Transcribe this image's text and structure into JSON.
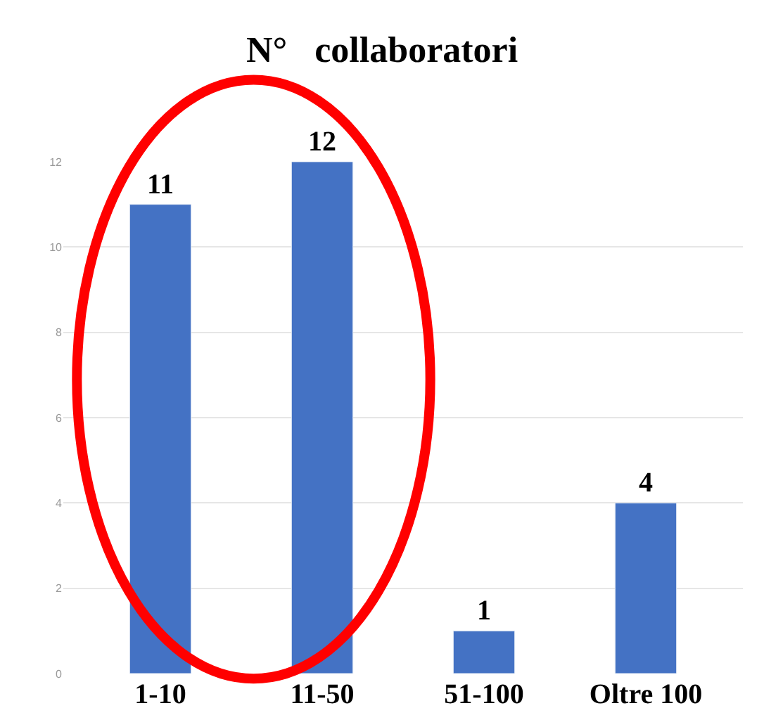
{
  "chart_data": {
    "type": "bar",
    "title": "N°   collaboratori",
    "categories": [
      "1-10",
      "11-50",
      "51-100",
      "Oltre 100"
    ],
    "values": [
      11,
      12,
      1,
      4
    ],
    "color": "#4472c4",
    "ylim": [
      0,
      12
    ],
    "yticks": [
      0,
      2,
      4,
      6,
      8,
      10,
      12
    ],
    "grid": "y",
    "data_labels": true,
    "legend": false
  }
}
